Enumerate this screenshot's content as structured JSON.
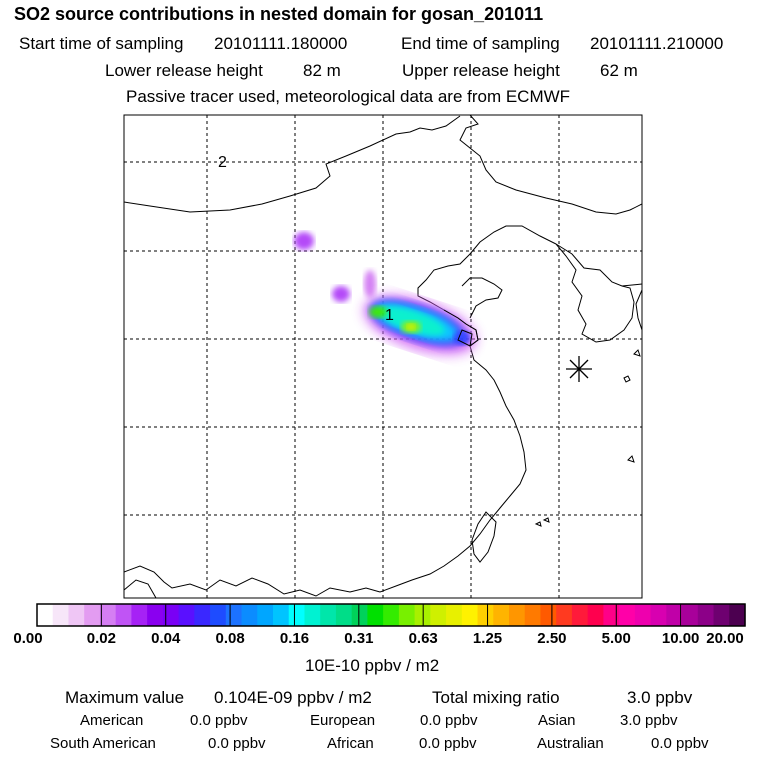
{
  "title": "SO2 source contributions in nested domain for gosan_201011",
  "sampling": {
    "start_label": "Start time of sampling",
    "start_value": "20101111.180000",
    "end_label": "End time of sampling",
    "end_value": "20101111.210000"
  },
  "release": {
    "lower_label": "Lower release height",
    "lower_value": "82 m",
    "upper_label": "Upper release height",
    "upper_value": "62 m"
  },
  "note": "Passive tracer used, meteorological data are from ECMWF",
  "map_labels": {
    "label_1": "1",
    "label_2": "2"
  },
  "colorbar": {
    "ticks": [
      "0.00",
      "0.02",
      "0.04",
      "0.08",
      "0.16",
      "0.31",
      "0.63",
      "1.25",
      "2.50",
      "5.00",
      "10.00",
      "20.00"
    ],
    "colors": [
      "#ffffff",
      "#f7e6f9",
      "#efc6f5",
      "#e39cf1",
      "#d57ef3",
      "#c054f5",
      "#a622f5",
      "#8a00f0",
      "#7a00f5",
      "#5a10ff",
      "#3a28ff",
      "#1e4cff",
      "#1c72ff",
      "#0b8cff",
      "#00a6ff",
      "#00c4ff",
      "#00ffff",
      "#00f2d2",
      "#00e6aa",
      "#00dd88",
      "#00d25a",
      "#00e000",
      "#34ec00",
      "#78f000",
      "#a8f000",
      "#cff000",
      "#e8f000",
      "#fff200",
      "#ffd000",
      "#ffb400",
      "#ff9600",
      "#ff7a00",
      "#ff5a00",
      "#ff3a20",
      "#ff1a3a",
      "#ff004e",
      "#ff0088",
      "#ff00a8",
      "#ee00ae",
      "#d800b0",
      "#c000a8",
      "#a8009a",
      "#8c0088",
      "#6e0070",
      "#4c0050"
    ],
    "unit": "10E-10 ppbv / m2"
  },
  "summary": {
    "max_label": "Maximum value",
    "max_value": "0.104E-09 ppbv / m2",
    "total_label": "Total mixing ratio",
    "total_value": "3.0 ppbv",
    "regions": [
      {
        "name": "American",
        "value": "0.0 ppbv"
      },
      {
        "name": "European",
        "value": "0.0 ppbv"
      },
      {
        "name": "Asian",
        "value": "3.0 ppbv"
      },
      {
        "name": "South American",
        "value": "0.0 ppbv"
      },
      {
        "name": "African",
        "value": "0.0 ppbv"
      },
      {
        "name": "Australian",
        "value": "0.0 ppbv"
      }
    ]
  },
  "chart_data": {
    "type": "heatmap",
    "title": "SO2 source contributions in nested domain for gosan_201011",
    "colorbar_ticks": [
      0.0,
      0.02,
      0.04,
      0.08,
      0.16,
      0.31,
      0.63,
      1.25,
      2.5,
      5.0,
      10.0,
      20.0
    ],
    "colorbar_unit": "10E-10 ppbv / m2",
    "max_value": "0.104E-09 ppbv / m2",
    "grid": true
  }
}
